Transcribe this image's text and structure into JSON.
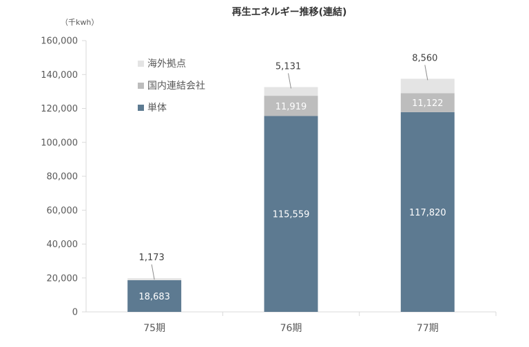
{
  "chart_data": {
    "type": "bar",
    "stacked": true,
    "title": "再生エネルギー推移(連結)",
    "unit_label": "（千kwh）",
    "categories": [
      "75期",
      "76期",
      "77期"
    ],
    "ylim": [
      0,
      160000
    ],
    "yticks": [
      0,
      20000,
      40000,
      60000,
      80000,
      100000,
      120000,
      140000,
      160000
    ],
    "ytick_labels": [
      "0",
      "20,000",
      "40,000",
      "60,000",
      "80,000",
      "100,000",
      "120,000",
      "140,000",
      "160,000"
    ],
    "grid": false,
    "legend_position": "upper-left inside plot",
    "series": [
      {
        "name": "単体",
        "color": "#5d7a91",
        "values": [
          18683,
          115559,
          117820
        ],
        "labels": [
          "18,683",
          "115,559",
          "117,820"
        ]
      },
      {
        "name": "国内連結会社",
        "color": "#bdbdbd",
        "values": [
          0,
          11919,
          11122
        ],
        "labels": [
          "",
          "11,919",
          "11,122"
        ]
      },
      {
        "name": "海外拠点",
        "color": "#e4e4e4",
        "values": [
          1173,
          5131,
          8560
        ],
        "labels": [
          "1,173",
          "5,131",
          "8,560"
        ]
      }
    ],
    "legend_order": [
      "海外拠点",
      "国内連結会社",
      "単体"
    ]
  }
}
